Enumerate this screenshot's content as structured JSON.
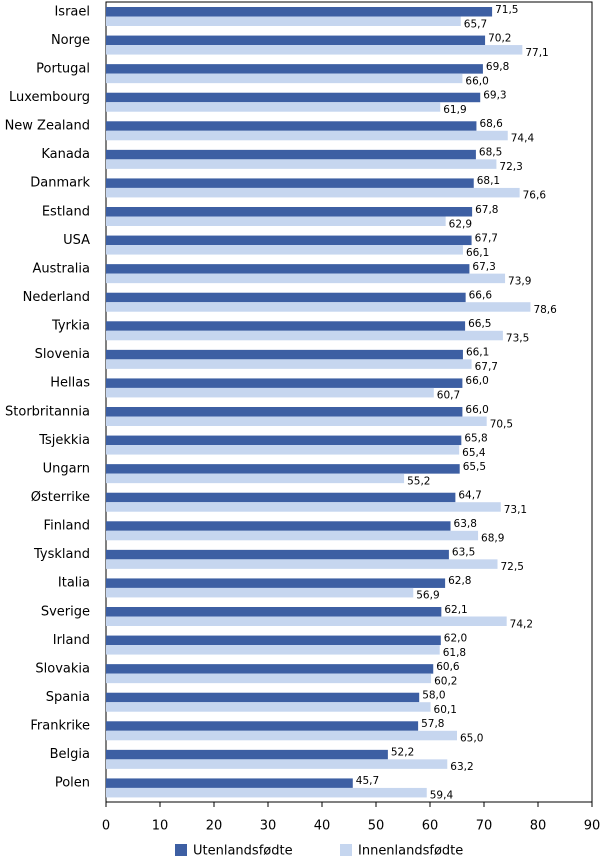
{
  "chart_data": {
    "type": "barh",
    "categories": [
      "Israel",
      "Norge",
      "Portugal",
      "Luxembourg",
      "New Zealand",
      "Kanada",
      "Danmark",
      "Estland",
      "USA",
      "Australia",
      "Nederland",
      "Tyrkia",
      "Slovenia",
      "Hellas",
      "Storbritannia",
      "Tsjekkia",
      "Ungarn",
      "Østerrike",
      "Finland",
      "Tyskland",
      "Italia",
      "Sverige",
      "Irland",
      "Slovakia",
      "Spania",
      "Frankrike",
      "Belgia",
      "Polen"
    ],
    "series": [
      {
        "name": "Utenlandsfødte",
        "color": "#3d5fa3",
        "values": [
          71.5,
          70.2,
          69.8,
          69.3,
          68.6,
          68.5,
          68.1,
          67.8,
          67.7,
          67.3,
          66.6,
          66.5,
          66.1,
          66.0,
          66.0,
          65.8,
          65.5,
          64.7,
          63.8,
          63.5,
          62.8,
          62.1,
          62.0,
          60.6,
          58.0,
          57.8,
          52.2,
          45.7
        ],
        "value_labels": [
          "71,5",
          "70,2",
          "69,8",
          "69,3",
          "68,6",
          "68,5",
          "68,1",
          "67,8",
          "67,7",
          "67,3",
          "66,6",
          "66,5",
          "66,1",
          "66,0",
          "66,0",
          "65,8",
          "65,5",
          "64,7",
          "63,8",
          "63,5",
          "62,8",
          "62,1",
          "62,0",
          "60,6",
          "58,0",
          "57,8",
          "52,2",
          "45,7"
        ]
      },
      {
        "name": "Innenlandsfødte",
        "color": "#c6d6ef",
        "values": [
          65.7,
          77.1,
          66.0,
          61.9,
          74.4,
          72.3,
          76.6,
          62.9,
          66.1,
          73.9,
          78.6,
          73.5,
          67.7,
          60.7,
          70.5,
          65.4,
          55.2,
          73.1,
          68.9,
          72.5,
          56.9,
          74.2,
          61.8,
          60.2,
          60.1,
          65.0,
          63.2,
          59.4
        ],
        "value_labels": [
          "65,7",
          "77,1",
          "66,0",
          "61,9",
          "74,4",
          "72,3",
          "76,6",
          "62,9",
          "66,1",
          "73,9",
          "78,6",
          "73,5",
          "67,7",
          "60,7",
          "70,5",
          "65,4",
          "55,2",
          "73,1",
          "68,9",
          "72,5",
          "56,9",
          "74,2",
          "61,8",
          "60,2",
          "60,1",
          "65,0",
          "63,2",
          "59,4"
        ]
      }
    ],
    "xlim": [
      0,
      90
    ],
    "xticks": [
      0,
      10,
      20,
      30,
      40,
      50,
      60,
      70,
      80,
      90
    ]
  }
}
